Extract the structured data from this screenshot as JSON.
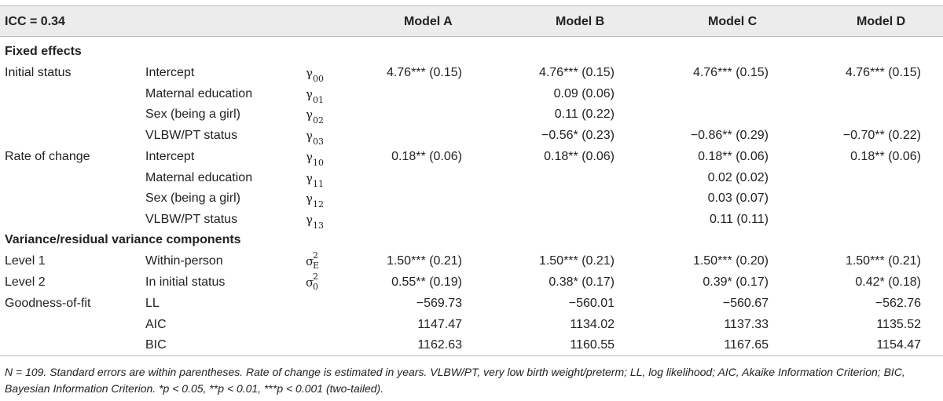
{
  "header": {
    "icc": "ICC = 0.34",
    "models": [
      "Model A",
      "Model B",
      "Model C",
      "Model D"
    ]
  },
  "rows": [
    {
      "section": "Fixed effects"
    },
    {
      "group": "Initial status",
      "label": "Intercept",
      "sym": "γ",
      "sub": "00",
      "values": [
        "4.76*** (0.15)",
        "4.76*** (0.15)",
        "4.76*** (0.15)",
        "4.76*** (0.15)"
      ]
    },
    {
      "group": "",
      "label": "Maternal education",
      "sym": "γ",
      "sub": "01",
      "values": [
        "",
        "0.09 (0.06)",
        "",
        ""
      ]
    },
    {
      "group": "",
      "label": "Sex (being a girl)",
      "sym": "γ",
      "sub": "02",
      "values": [
        "",
        "0.11 (0.22)",
        "",
        ""
      ]
    },
    {
      "group": "",
      "label": "VLBW/PT status",
      "sym": "γ",
      "sub": "03",
      "values": [
        "",
        "−0.56* (0.23)",
        "−0.86** (0.29)",
        "−0.70** (0.22)"
      ]
    },
    {
      "group": "Rate of change",
      "label": "Intercept",
      "sym": "γ",
      "sub": "10",
      "values": [
        "0.18** (0.06)",
        "0.18** (0.06)",
        "0.18** (0.06)",
        "0.18** (0.06)"
      ]
    },
    {
      "group": "",
      "label": "Maternal education",
      "sym": "γ",
      "sub": "11",
      "values": [
        "",
        "",
        "0.02 (0.02)",
        ""
      ]
    },
    {
      "group": "",
      "label": "Sex (being a girl)",
      "sym": "γ",
      "sub": "12",
      "values": [
        "",
        "",
        "0.03 (0.07)",
        ""
      ]
    },
    {
      "group": "",
      "label": "VLBW/PT status",
      "sym": "γ",
      "sub": "13",
      "values": [
        "",
        "",
        "0.11 (0.11)",
        ""
      ]
    },
    {
      "section": "Variance/residual variance components"
    },
    {
      "group": "Level 1",
      "label": "Within-person",
      "sym": "σ",
      "sup": "2",
      "sub": "E",
      "values": [
        "1.50*** (0.21)",
        "1.50*** (0.21)",
        "1.50*** (0.20)",
        "1.50*** (0.21)"
      ]
    },
    {
      "group": "Level 2",
      "label": "In initial status",
      "sym": "σ",
      "sup": "2",
      "sub": "0",
      "values": [
        "0.55** (0.19)",
        "0.38* (0.17)",
        "0.39* (0.17)",
        "0.42* (0.18)"
      ]
    },
    {
      "group": "Goodness-of-fit",
      "label": "LL",
      "values": [
        "−569.73",
        "−560.01",
        "−560.67",
        "−562.76"
      ]
    },
    {
      "group": "",
      "label": "AIC",
      "values": [
        "1147.47",
        "1134.02",
        "1137.33",
        "1135.52"
      ]
    },
    {
      "group": "",
      "label": "BIC",
      "values": [
        "1162.63",
        "1160.55",
        "1167.65",
        "1154.47"
      ]
    }
  ],
  "note": "N = 109. Standard errors are within parentheses. Rate of change is estimated in years. VLBW/PT, very low birth weight/preterm; LL, log likelihood; AIC, Akaike Information Criterion; BIC, Bayesian Information Criterion. *p < 0.05, **p < 0.01, ***p < 0.001 (two-tailed)."
}
